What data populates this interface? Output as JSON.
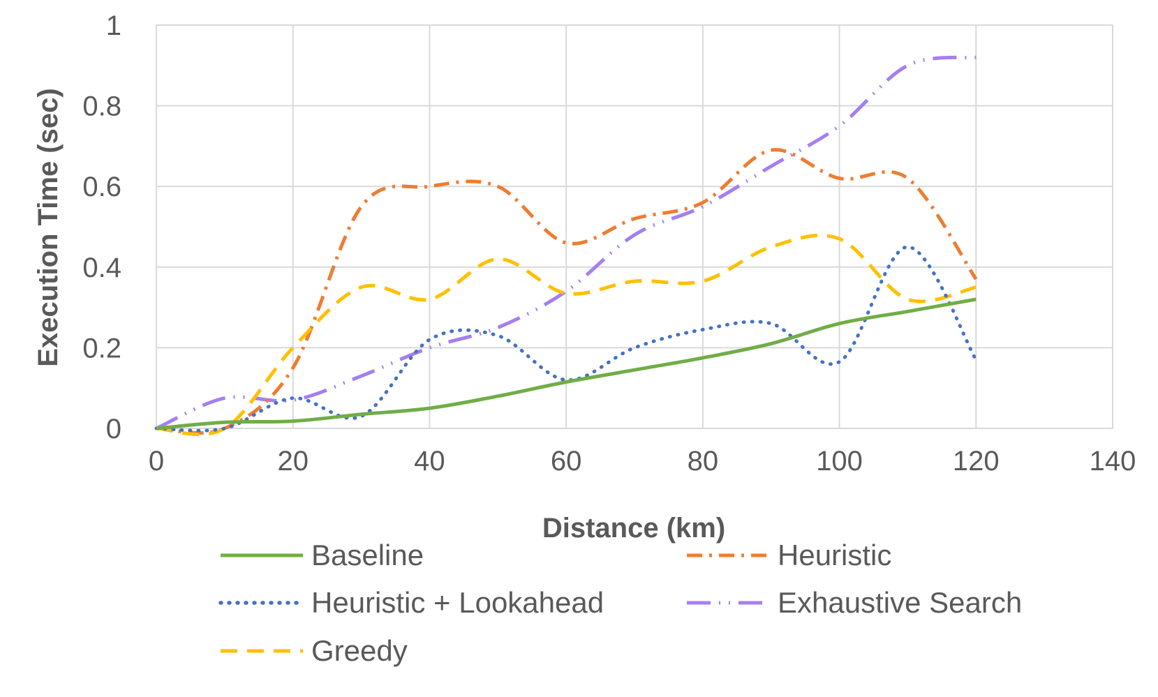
{
  "chart_data": {
    "type": "line",
    "title": "",
    "xlabel": "Distance (km)",
    "ylabel": "Execution Time (sec)",
    "xlim": [
      0,
      140
    ],
    "ylim": [
      0,
      1
    ],
    "x_ticks": [
      "0",
      "20",
      "40",
      "60",
      "80",
      "100",
      "120",
      "140"
    ],
    "y_ticks": [
      "0",
      "0.2",
      "0.4",
      "0.6",
      "0.8",
      "1"
    ],
    "grid": true,
    "smooth": true,
    "legend_position": "bottom",
    "x": [
      0,
      10,
      20,
      30,
      40,
      50,
      60,
      70,
      80,
      90,
      100,
      110,
      120
    ],
    "series": [
      {
        "name": "Baseline",
        "color": "#70ad47",
        "dash": "solid",
        "values": [
          0,
          0.015,
          0.018,
          0.035,
          0.05,
          0.08,
          0.115,
          0.145,
          0.175,
          0.21,
          0.26,
          0.29,
          0.32
        ]
      },
      {
        "name": "Heuristic",
        "color": "#ed7d31",
        "dash": "dash-dot",
        "values": [
          0,
          0,
          0.15,
          0.55,
          0.6,
          0.6,
          0.46,
          0.52,
          0.56,
          0.69,
          0.62,
          0.62,
          0.37
        ]
      },
      {
        "name": "Heuristic + Lookahead",
        "color": "#4472c4",
        "dash": "dotted",
        "values": [
          0,
          0,
          0.075,
          0.03,
          0.22,
          0.23,
          0.12,
          0.2,
          0.245,
          0.26,
          0.165,
          0.45,
          0.17
        ]
      },
      {
        "name": "Exhaustive Search",
        "color": "#a47ff0",
        "dash": "long-dash-dot-dot",
        "values": [
          0,
          0.075,
          0.07,
          0.13,
          0.2,
          0.25,
          0.34,
          0.48,
          0.55,
          0.65,
          0.75,
          0.9,
          0.92
        ]
      },
      {
        "name": "Greedy",
        "color": "#ffc000",
        "dash": "dashed",
        "values": [
          0,
          0,
          0.2,
          0.35,
          0.32,
          0.42,
          0.335,
          0.365,
          0.365,
          0.45,
          0.47,
          0.32,
          0.35
        ]
      }
    ]
  }
}
